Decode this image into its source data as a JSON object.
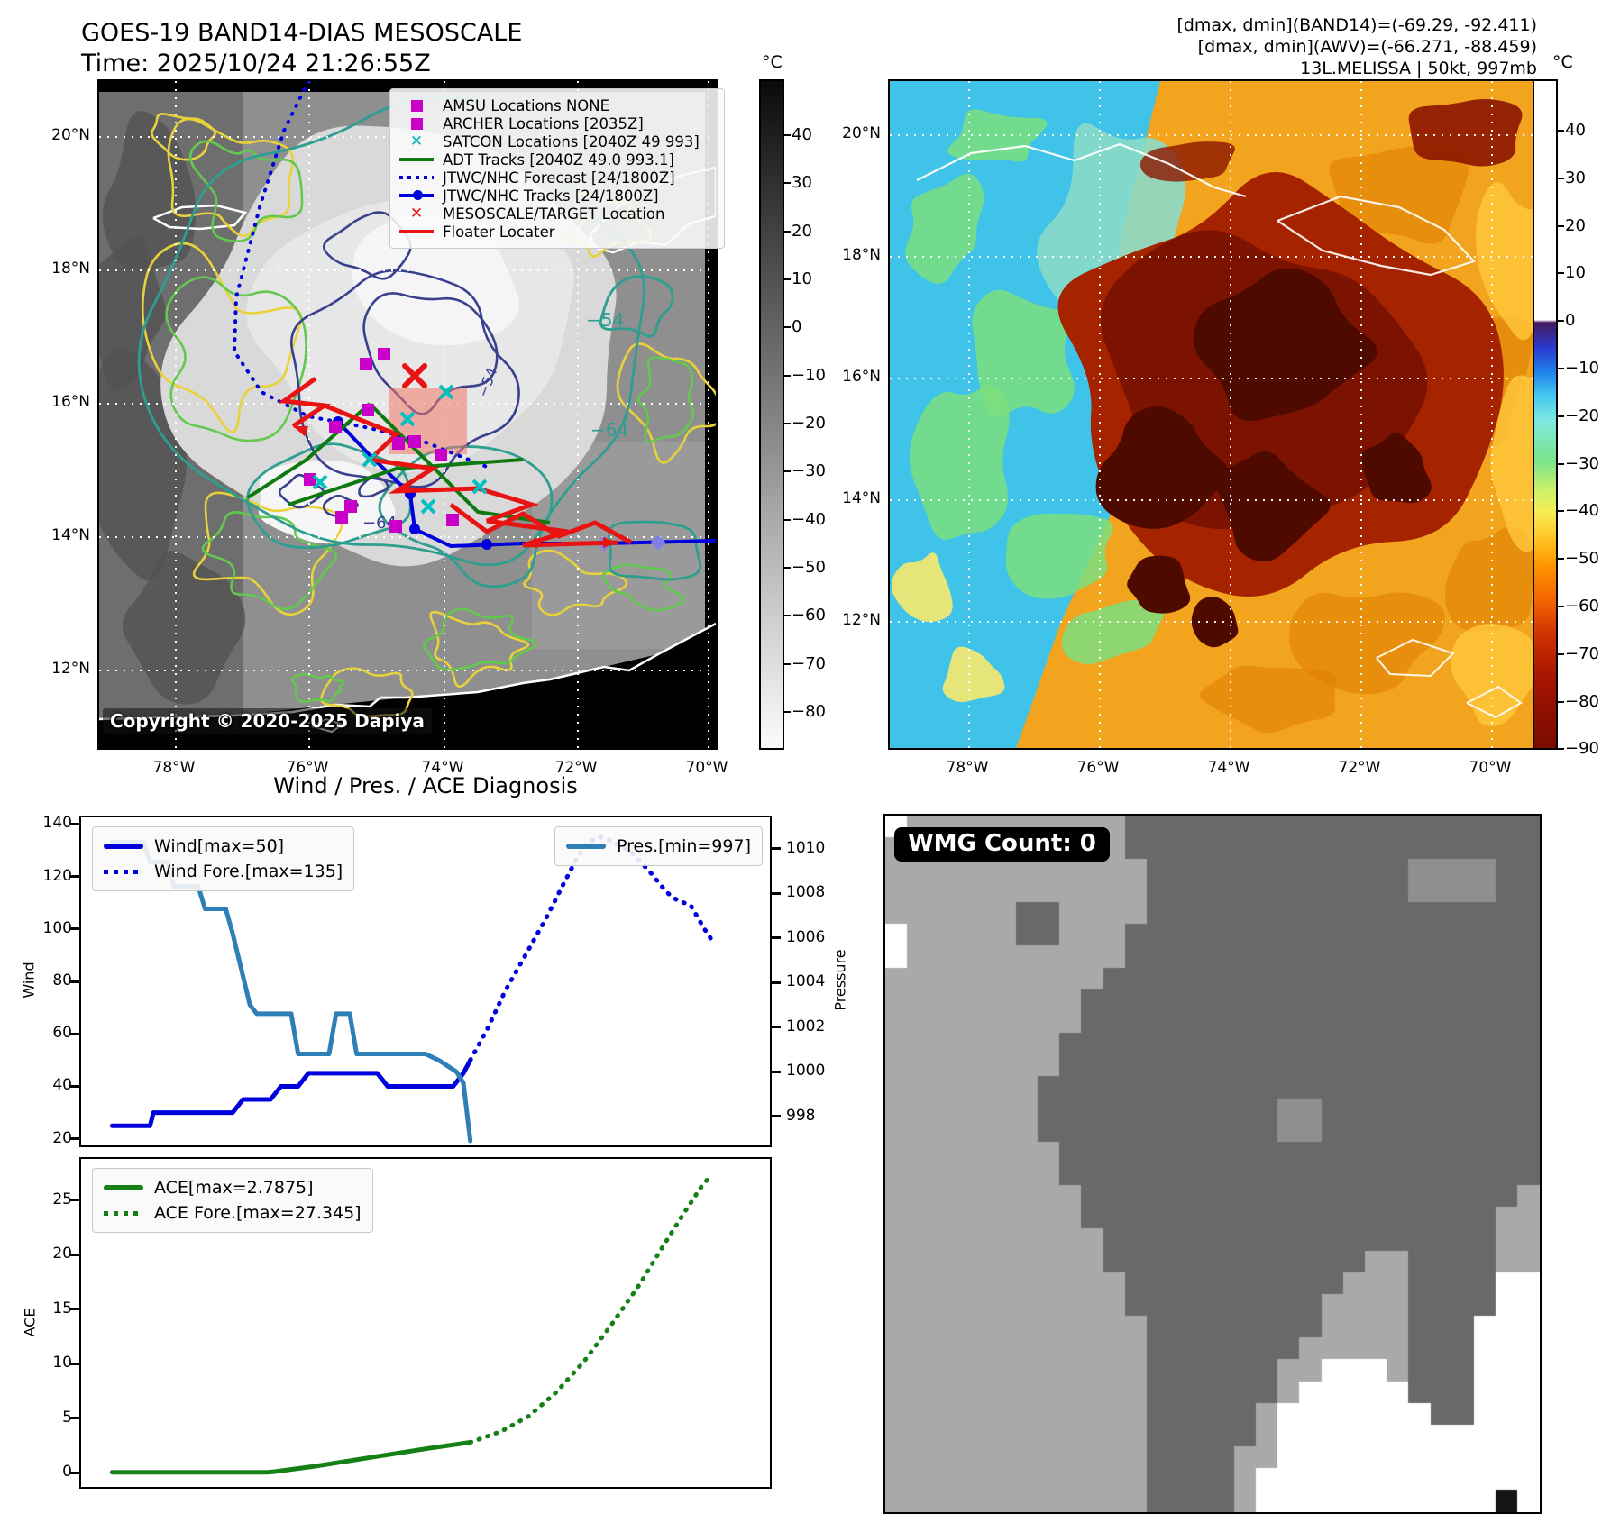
{
  "header": {
    "title_line1": "GOES-19 BAND14-DIAS MESOSCALE",
    "title_line2": "Time: 2025/10/24 21:26:55Z",
    "info_lines": [
      "[dmax, dmin](BAND14)=(-69.29, -92.411)",
      "[dmax, dmin](AWV)=(-66.271, -88.459)",
      "13L.MELISSA | 50kt, 997mb"
    ]
  },
  "left_map": {
    "lat_labels": [
      "20°N",
      "18°N",
      "16°N",
      "14°N",
      "12°N"
    ],
    "lon_labels": [
      "78°W",
      "76°W",
      "74°W",
      "72°W",
      "70°W"
    ],
    "copyright": "Copyright © 2020-2025 Dapiya",
    "legend": [
      {
        "label": "AMSU Locations NONE",
        "marker": "square",
        "color": "#c800c8"
      },
      {
        "label": "ARCHER Locations [2035Z]",
        "marker": "square",
        "color": "#c800c8"
      },
      {
        "label": "SATCON Locations [2040Z 49 993]",
        "marker": "x",
        "color": "#00b4b4"
      },
      {
        "label": "ADT Tracks [2040Z 49.0 993.1]",
        "marker": "line",
        "color": "#0e7a0e"
      },
      {
        "label": "JTWC/NHC Forecast [24/1800Z]",
        "marker": "dotted",
        "color": "#0000dd"
      },
      {
        "label": "JTWC/NHC Tracks [24/1800Z]",
        "marker": "line-dot",
        "color": "#0000dd"
      },
      {
        "label": "MESOSCALE/TARGET Location",
        "marker": "x",
        "color": "#e81414"
      },
      {
        "label": "Floater Locater",
        "marker": "line",
        "color": "#e81414"
      }
    ],
    "contour_labels": [
      {
        "text": "−54"
      },
      {
        "text": "−64"
      },
      {
        "text": "−64"
      },
      {
        "text": "−54"
      }
    ],
    "colorbar": {
      "unit": "°C",
      "ticks": [
        40,
        30,
        20,
        10,
        0,
        -10,
        -20,
        -30,
        -40,
        -50,
        -60,
        -70,
        -80
      ]
    }
  },
  "right_map": {
    "lat_labels": [
      "20°N",
      "18°N",
      "16°N",
      "14°N",
      "12°N"
    ],
    "lon_labels": [
      "78°W",
      "76°W",
      "74°W",
      "72°W",
      "70°W"
    ],
    "colorbar": {
      "unit": "°C",
      "ticks": [
        40,
        30,
        20,
        10,
        0,
        -10,
        -20,
        -30,
        -40,
        -50,
        -60,
        -70,
        -80,
        -90
      ]
    }
  },
  "charts": {
    "title": "Wind / Pres. / ACE Diagnosis"
  },
  "chart_data": [
    {
      "type": "line",
      "title": "Wind / Pres. / ACE Diagnosis (top panel)",
      "y_left": {
        "label": "Wind",
        "ticks": [
          20,
          40,
          60,
          80,
          100,
          120,
          140
        ],
        "range": [
          17.5,
          142.5
        ]
      },
      "y_right": {
        "label": "Pressure",
        "ticks": [
          998,
          1000,
          1002,
          1004,
          1006,
          1008,
          1010
        ],
        "range": [
          996.7,
          1011.4
        ]
      },
      "x_axis": {
        "label": "",
        "ticks": [],
        "range": [
          0,
          1
        ],
        "note": "time steps, no tick labels shown"
      },
      "legend_left_loc": "upper left",
      "legend_right_loc": "upper right",
      "grid": false,
      "series": [
        {
          "name": "Wind[max=50]",
          "axis": "left",
          "style": "solid",
          "color": "#0000dd",
          "x": [
            0.045,
            0.1,
            0.105,
            0.22,
            0.235,
            0.275,
            0.29,
            0.315,
            0.33,
            0.43,
            0.445,
            0.54,
            0.555,
            0.565
          ],
          "y": [
            25,
            25,
            30,
            30,
            35,
            35,
            40,
            40,
            45,
            45,
            40,
            40,
            45,
            50
          ]
        },
        {
          "name": "Wind Fore.[max=135]",
          "axis": "left",
          "style": "dotted",
          "color": "#0000dd",
          "x": [
            0.565,
            0.59,
            0.615,
            0.645,
            0.675,
            0.7,
            0.72,
            0.735,
            0.755,
            0.775,
            0.8,
            0.825,
            0.85,
            0.865,
            0.885,
            0.905,
            0.915
          ],
          "y": [
            50,
            62,
            76,
            90,
            104,
            117,
            127,
            133,
            135,
            133,
            129,
            122,
            114,
            111,
            109,
            100,
            96
          ]
        },
        {
          "name": "Pres.[min=997]",
          "axis": "right",
          "style": "solid",
          "color": "#2e7fb8",
          "x": [
            0.045,
            0.09,
            0.1,
            0.125,
            0.135,
            0.17,
            0.18,
            0.21,
            0.22,
            0.245,
            0.255,
            0.305,
            0.315,
            0.36,
            0.37,
            0.39,
            0.4,
            0.5,
            0.52,
            0.545,
            0.555,
            0.565
          ],
          "y": [
            1010.3,
            1010.3,
            1009.4,
            1009.4,
            1008.3,
            1008.3,
            1007.3,
            1007.3,
            1006.2,
            1003.0,
            1002.6,
            1002.6,
            1000.8,
            1000.8,
            1002.6,
            1002.6,
            1000.8,
            1000.8,
            1000.5,
            1000.0,
            999.5,
            996.9
          ]
        }
      ]
    },
    {
      "type": "line",
      "title": "ACE panel",
      "y_left": {
        "label": "ACE",
        "ticks": [
          0,
          5,
          10,
          15,
          20,
          25
        ],
        "range": [
          -1.3,
          28.8
        ]
      },
      "x_axis": {
        "label": "",
        "ticks": [],
        "range": [
          0,
          1
        ]
      },
      "legend_left_loc": "upper left",
      "grid": false,
      "series": [
        {
          "name": "ACE[max=2.7875]",
          "axis": "left",
          "style": "solid",
          "color": "#158015",
          "x": [
            0.045,
            0.27,
            0.28,
            0.34,
            0.42,
            0.5,
            0.565
          ],
          "y": [
            0.05,
            0.05,
            0.1,
            0.6,
            1.4,
            2.2,
            2.79
          ]
        },
        {
          "name": "ACE Fore.[max=27.345]",
          "axis": "left",
          "style": "dotted",
          "color": "#158015",
          "x": [
            0.565,
            0.61,
            0.65,
            0.69,
            0.73,
            0.77,
            0.81,
            0.845,
            0.875,
            0.9,
            0.915
          ],
          "y": [
            2.79,
            3.8,
            5.2,
            7.4,
            10.2,
            13.6,
            17.2,
            20.8,
            23.8,
            26.2,
            27.35
          ]
        }
      ]
    }
  ],
  "wmg": {
    "badge": "WMG Count: 0",
    "palette": {
      "L": "#a9a9a9",
      "D": "#696969",
      "M": "#8f8f8f",
      "W": "#ffffff",
      "B": "#141414"
    },
    "bitmap": [
      "WLLLLLLLLLLDDDDDDDDDDDDDDDDDDD",
      "LLLLLLLLLLLDDDDDDDDDDDDDDDDDDD",
      "LLLLLLLLLLLLDDDDDDDDDDDDMMMMDD",
      "LLLLLLLLLLLLDDDDDDDDDDDDMMMMDD",
      "LLLLLLDDLLLLDDDDDDDDDDDDDDDDDD",
      "WLLLLLDDLLLDDDDDDDDDDDDDDDDDDD",
      "WLLLLLLLLLLDDDDDDDDDDDDDDDDDDD",
      "LLLLLLLLLLDDDDDDDDDDDDDDDDDDDD",
      "LLLLLLLLLDDDDDDDDDDDDDDDDDDDDD",
      "LLLLLLLLLDDDDDDDDDDDDDDDDDDDDD",
      "LLLLLLLLDDDDDDDDDDDDDDDDDDDDDD",
      "LLLLLLLLDDDDDDDDDDDDDDDDDDDDDD",
      "LLLLLLLDDDDDDDDDDDDDDDDDDDDDDD",
      "LLLLLLLDDDDDDDDDDDMMDDDDDDDDDD",
      "LLLLLLLDDDDDDDDDDDMMDDDDDDDDDD",
      "LLLLLLLLDDDDDDDDDDDDDDDDDDDDDD",
      "LLLLLLLLDDDDDDDDDDDDDDDDDDDDDD",
      "LLLLLLLLLDDDDDDDDDDDDDDDDDDDDL",
      "LLLLLLLLLDDDDDDDDDDDDDDDDDDDLL",
      "LLLLLLLLLLDDDDDDDDDDDDDDDDDDLL",
      "LLLLLLLLLLDDDDDDDDDDDDLLDDDDLL",
      "LLLLLLLLLLLDDDDDDDDDDLLLDDDDWW",
      "LLLLLLLLLLLDDDDDDDDDLLLLDDDDWW",
      "LLLLLLLLLLLLDDDDDDDDLLLLDDDWWW",
      "LLLLLLLLLLLLDDDDDDDLLLLLDDDWWW",
      "LLLLLLLLLLLLDDDDDDLLWWWLDDDWWW",
      "LLLLLLLLLLLLDDDDDDLWWWWWDDDWWW",
      "LLLLLLLLLLLLDDDDDLWWWWWWWDDWWW",
      "LLLLLLLLLLLLDDDDDLWWWWWWWWWWWW",
      "LLLLLLLLLLLLDDDDLLWWWWWWWWWWWW",
      "LLLLLLLLLLLLDDDDLWWWWWWWWWWWWW",
      "LLLLLLLLLLLLDDDDLWWWWWWWWWWWBW"
    ]
  }
}
